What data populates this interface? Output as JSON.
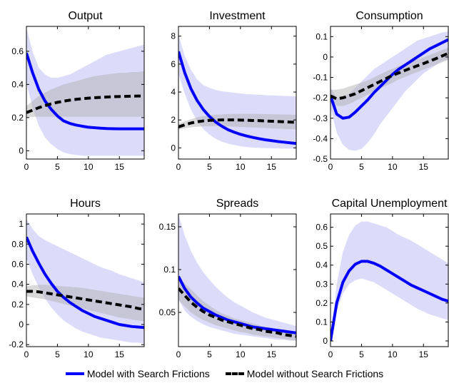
{
  "chart_data": [
    {
      "type": "line",
      "title": "Output",
      "xlim": [
        0,
        19
      ],
      "ylim": [
        -0.05,
        0.75
      ],
      "xticks": [
        0,
        5,
        10,
        15
      ],
      "yticks": [
        0,
        0.2,
        0.4,
        0.6
      ],
      "xticklabels": [
        "0",
        "5",
        "10",
        "15"
      ],
      "yticklabels": [
        "0",
        "0.2",
        "0.4",
        "0.6"
      ],
      "x": [
        0,
        1,
        2,
        3,
        4,
        5,
        6,
        7,
        8,
        9,
        10,
        11,
        12,
        13,
        14,
        15,
        16,
        17,
        18,
        19
      ],
      "series": [
        {
          "name": "Model with Search Frictions",
          "values": [
            0.59,
            0.47,
            0.37,
            0.3,
            0.25,
            0.21,
            0.18,
            0.165,
            0.155,
            0.148,
            0.142,
            0.139,
            0.136,
            0.134,
            0.133,
            0.132,
            0.132,
            0.132,
            0.132,
            0.132
          ],
          "band_lower": [
            0.41,
            0.26,
            0.15,
            0.08,
            0.04,
            0.01,
            -0.01,
            -0.02,
            -0.025,
            -0.03,
            -0.03,
            -0.03,
            -0.03,
            -0.03,
            -0.03,
            -0.03,
            -0.03,
            -0.03,
            -0.03,
            -0.03
          ],
          "band_upper": [
            0.74,
            0.6,
            0.5,
            0.46,
            0.44,
            0.44,
            0.45,
            0.46,
            0.48,
            0.5,
            0.52,
            0.54,
            0.56,
            0.58,
            0.59,
            0.6,
            0.61,
            0.62,
            0.63,
            0.64
          ]
        },
        {
          "name": "Model without Search Frictions",
          "values": [
            0.23,
            0.245,
            0.26,
            0.272,
            0.283,
            0.292,
            0.299,
            0.305,
            0.31,
            0.314,
            0.317,
            0.32,
            0.322,
            0.324,
            0.326,
            0.327,
            0.328,
            0.329,
            0.33,
            0.33
          ],
          "band_lower": [
            0.2,
            0.205,
            0.205,
            0.205,
            0.205,
            0.205,
            0.205,
            0.205,
            0.205,
            0.205,
            0.205,
            0.205,
            0.205,
            0.205,
            0.205,
            0.205,
            0.205,
            0.205,
            0.205,
            0.205
          ],
          "band_upper": [
            0.27,
            0.3,
            0.33,
            0.35,
            0.37,
            0.385,
            0.4,
            0.41,
            0.42,
            0.43,
            0.44,
            0.45,
            0.455,
            0.46,
            0.465,
            0.47,
            0.47,
            0.475,
            0.475,
            0.48
          ]
        }
      ]
    },
    {
      "type": "line",
      "title": "Investment",
      "xlim": [
        0,
        19
      ],
      "ylim": [
        -0.8,
        8.7
      ],
      "xticks": [
        0,
        5,
        10,
        15
      ],
      "yticks": [
        0,
        2,
        4,
        6,
        8
      ],
      "xticklabels": [
        "0",
        "5",
        "10",
        "15"
      ],
      "yticklabels": [
        "0",
        "2",
        "4",
        "6",
        "8"
      ],
      "x": [
        0,
        1,
        2,
        3,
        4,
        5,
        6,
        7,
        8,
        9,
        10,
        11,
        12,
        13,
        14,
        15,
        16,
        17,
        18,
        19
      ],
      "series": [
        {
          "name": "Model with Search Frictions",
          "values": [
            6.9,
            5.4,
            4.25,
            3.4,
            2.75,
            2.25,
            1.85,
            1.55,
            1.3,
            1.12,
            0.97,
            0.85,
            0.75,
            0.66,
            0.58,
            0.52,
            0.46,
            0.41,
            0.36,
            0.32
          ],
          "band_lower": [
            5.3,
            3.9,
            2.75,
            1.95,
            1.35,
            0.95,
            0.65,
            0.45,
            0.3,
            0.2,
            0.12,
            0.06,
            0.02,
            0.0,
            -0.02,
            -0.03,
            -0.04,
            -0.05,
            -0.05,
            -0.05
          ],
          "band_upper": [
            8.1,
            6.6,
            5.6,
            4.9,
            4.5,
            4.3,
            4.15,
            4.05,
            4.0,
            3.95,
            3.9,
            3.85,
            3.82,
            3.8,
            3.78,
            3.76,
            3.74,
            3.72,
            3.7,
            3.7
          ]
        },
        {
          "name": "Model without Search Frictions",
          "values": [
            1.5,
            1.65,
            1.78,
            1.87,
            1.93,
            1.97,
            1.99,
            2.0,
            2.0,
            2.0,
            1.99,
            1.98,
            1.96,
            1.95,
            1.93,
            1.91,
            1.89,
            1.87,
            1.85,
            1.83
          ],
          "band_lower": [
            1.3,
            1.4,
            1.47,
            1.52,
            1.55,
            1.56,
            1.56,
            1.55,
            1.54,
            1.52,
            1.5,
            1.48,
            1.46,
            1.44,
            1.42,
            1.4,
            1.38,
            1.36,
            1.34,
            1.32
          ],
          "band_upper": [
            1.7,
            1.9,
            2.05,
            2.18,
            2.27,
            2.33,
            2.37,
            2.4,
            2.42,
            2.43,
            2.44,
            2.44,
            2.44,
            2.43,
            2.42,
            2.41,
            2.4,
            2.39,
            2.38,
            2.37
          ]
        }
      ]
    },
    {
      "type": "line",
      "title": "Consumption",
      "xlim": [
        0,
        19
      ],
      "ylim": [
        -0.5,
        0.15
      ],
      "xticks": [
        0,
        5,
        10,
        15
      ],
      "yticks": [
        -0.5,
        -0.4,
        -0.3,
        -0.2,
        -0.1,
        0,
        0.1
      ],
      "xticklabels": [
        "0",
        "5",
        "10",
        "15"
      ],
      "yticklabels": [
        "-0.5",
        "-0.4",
        "-0.3",
        "-0.2",
        "-0.1",
        "0",
        "0.1"
      ],
      "x": [
        0,
        1,
        2,
        3,
        4,
        5,
        6,
        7,
        8,
        9,
        10,
        11,
        12,
        13,
        14,
        15,
        16,
        17,
        18,
        19
      ],
      "series": [
        {
          "name": "Model with Search Frictions",
          "values": [
            -0.19,
            -0.28,
            -0.3,
            -0.295,
            -0.27,
            -0.24,
            -0.21,
            -0.175,
            -0.145,
            -0.115,
            -0.085,
            -0.06,
            -0.04,
            -0.02,
            0.0,
            0.02,
            0.04,
            0.055,
            0.07,
            0.085
          ],
          "band_lower": [
            -0.25,
            -0.37,
            -0.43,
            -0.455,
            -0.46,
            -0.45,
            -0.42,
            -0.38,
            -0.33,
            -0.29,
            -0.25,
            -0.21,
            -0.17,
            -0.14,
            -0.11,
            -0.08,
            -0.06,
            -0.04,
            -0.02,
            -0.01
          ],
          "band_upper": [
            -0.15,
            -0.2,
            -0.2,
            -0.18,
            -0.15,
            -0.12,
            -0.09,
            -0.06,
            -0.04,
            -0.02,
            0.0,
            0.02,
            0.04,
            0.06,
            0.08,
            0.09,
            0.1,
            0.11,
            0.12,
            0.125
          ]
        },
        {
          "name": "Model without Search Frictions",
          "values": [
            -0.19,
            -0.205,
            -0.2,
            -0.19,
            -0.18,
            -0.165,
            -0.15,
            -0.135,
            -0.12,
            -0.105,
            -0.09,
            -0.078,
            -0.066,
            -0.054,
            -0.043,
            -0.032,
            -0.02,
            -0.008,
            0.005,
            0.018
          ],
          "band_lower": [
            -0.21,
            -0.24,
            -0.24,
            -0.23,
            -0.215,
            -0.2,
            -0.185,
            -0.17,
            -0.155,
            -0.14,
            -0.125,
            -0.11,
            -0.098,
            -0.086,
            -0.074,
            -0.062,
            -0.05,
            -0.038,
            -0.026,
            -0.015
          ],
          "band_upper": [
            -0.16,
            -0.16,
            -0.155,
            -0.145,
            -0.135,
            -0.125,
            -0.115,
            -0.1,
            -0.085,
            -0.07,
            -0.058,
            -0.045,
            -0.034,
            -0.023,
            -0.012,
            -0.002,
            0.01,
            0.022,
            0.034,
            0.046
          ]
        }
      ]
    },
    {
      "type": "line",
      "title": "Hours",
      "xlim": [
        0,
        19
      ],
      "ylim": [
        -0.22,
        1.1
      ],
      "xticks": [
        0,
        5,
        10,
        15
      ],
      "yticks": [
        -0.2,
        0,
        0.2,
        0.4,
        0.6,
        0.8,
        1
      ],
      "xticklabels": [
        "0",
        "5",
        "10",
        "15"
      ],
      "yticklabels": [
        "-0.2",
        "0",
        "0.2",
        "0.4",
        "0.6",
        "0.8",
        "1"
      ],
      "x": [
        0,
        1,
        2,
        3,
        4,
        5,
        6,
        7,
        8,
        9,
        10,
        11,
        12,
        13,
        14,
        15,
        16,
        17,
        18,
        19
      ],
      "series": [
        {
          "name": "Model with Search Frictions",
          "values": [
            0.87,
            0.73,
            0.61,
            0.5,
            0.41,
            0.33,
            0.27,
            0.22,
            0.18,
            0.14,
            0.11,
            0.08,
            0.06,
            0.04,
            0.02,
            0.0,
            -0.01,
            -0.02,
            -0.025,
            -0.03
          ],
          "band_lower": [
            0.66,
            0.5,
            0.37,
            0.26,
            0.17,
            0.1,
            0.04,
            0.0,
            -0.04,
            -0.07,
            -0.09,
            -0.11,
            -0.13,
            -0.14,
            -0.15,
            -0.16,
            -0.17,
            -0.18,
            -0.18,
            -0.19
          ],
          "band_upper": [
            1.05,
            0.95,
            0.88,
            0.84,
            0.81,
            0.78,
            0.75,
            0.72,
            0.69,
            0.66,
            0.63,
            0.6,
            0.57,
            0.55,
            0.53,
            0.5,
            0.48,
            0.46,
            0.44,
            0.42
          ]
        },
        {
          "name": "Model without Search Frictions",
          "values": [
            0.33,
            0.33,
            0.325,
            0.315,
            0.305,
            0.295,
            0.285,
            0.275,
            0.265,
            0.255,
            0.245,
            0.235,
            0.225,
            0.215,
            0.205,
            0.195,
            0.185,
            0.175,
            0.16,
            0.15
          ],
          "band_lower": [
            0.28,
            0.27,
            0.26,
            0.25,
            0.235,
            0.22,
            0.205,
            0.19,
            0.175,
            0.16,
            0.145,
            0.13,
            0.115,
            0.1,
            0.085,
            0.07,
            0.06,
            0.05,
            0.04,
            0.03
          ],
          "band_upper": [
            0.38,
            0.39,
            0.395,
            0.395,
            0.39,
            0.385,
            0.38,
            0.375,
            0.37,
            0.365,
            0.355,
            0.345,
            0.335,
            0.325,
            0.315,
            0.305,
            0.295,
            0.285,
            0.275,
            0.265
          ]
        }
      ]
    },
    {
      "type": "line",
      "title": "Spreads",
      "xlim": [
        0,
        19
      ],
      "ylim": [
        0.01,
        0.165
      ],
      "xticks": [
        0,
        5,
        10,
        15
      ],
      "yticks": [
        0.05,
        0.1,
        0.15
      ],
      "xticklabels": [
        "0",
        "5",
        "10",
        "15"
      ],
      "yticklabels": [
        "0.05",
        "0.1",
        "0.15"
      ],
      "x": [
        0,
        1,
        2,
        3,
        4,
        5,
        6,
        7,
        8,
        9,
        10,
        11,
        12,
        13,
        14,
        15,
        16,
        17,
        18,
        19
      ],
      "series": [
        {
          "name": "Model with Search Frictions",
          "values": [
            0.092,
            0.078,
            0.068,
            0.061,
            0.055,
            0.051,
            0.047,
            0.044,
            0.041,
            0.039,
            0.037,
            0.035,
            0.033,
            0.032,
            0.031,
            0.03,
            0.029,
            0.028,
            0.027,
            0.026
          ],
          "band_lower": [
            0.065,
            0.052,
            0.045,
            0.04,
            0.036,
            0.033,
            0.031,
            0.029,
            0.027,
            0.025,
            0.024,
            0.023,
            0.022,
            0.021,
            0.02,
            0.019,
            0.018,
            0.018,
            0.017,
            0.017
          ],
          "band_upper": [
            0.165,
            0.14,
            0.122,
            0.108,
            0.097,
            0.088,
            0.08,
            0.073,
            0.067,
            0.062,
            0.058,
            0.054,
            0.05,
            0.047,
            0.044,
            0.042,
            0.04,
            0.038,
            0.036,
            0.034
          ]
        },
        {
          "name": "Model without Search Frictions",
          "values": [
            0.078,
            0.07,
            0.062,
            0.056,
            0.051,
            0.047,
            0.044,
            0.041,
            0.039,
            0.037,
            0.035,
            0.033,
            0.031,
            0.03,
            0.028,
            0.027,
            0.026,
            0.024,
            0.023,
            0.022
          ],
          "band_lower": [
            0.065,
            0.057,
            0.05,
            0.045,
            0.041,
            0.038,
            0.035,
            0.033,
            0.031,
            0.029,
            0.027,
            0.026,
            0.024,
            0.023,
            0.022,
            0.021,
            0.02,
            0.019,
            0.018,
            0.017
          ],
          "band_upper": [
            0.09,
            0.084,
            0.077,
            0.07,
            0.063,
            0.058,
            0.053,
            0.049,
            0.046,
            0.043,
            0.041,
            0.039,
            0.037,
            0.035,
            0.033,
            0.032,
            0.03,
            0.029,
            0.028,
            0.027
          ]
        }
      ]
    },
    {
      "type": "line",
      "title": "Capital Unemployment",
      "xlim": [
        0,
        19
      ],
      "ylim": [
        -0.03,
        0.67
      ],
      "xticks": [
        0,
        5,
        10,
        15
      ],
      "yticks": [
        0,
        0.1,
        0.2,
        0.3,
        0.4,
        0.5,
        0.6
      ],
      "xticklabels": [
        "0",
        "5",
        "10",
        "15"
      ],
      "yticklabels": [
        "0",
        "0.1",
        "0.2",
        "0.3",
        "0.4",
        "0.5",
        "0.6"
      ],
      "x": [
        0,
        1,
        2,
        3,
        4,
        5,
        6,
        7,
        8,
        9,
        10,
        11,
        12,
        13,
        14,
        15,
        16,
        17,
        18,
        19
      ],
      "series": [
        {
          "name": "Model with Search Frictions",
          "values": [
            0.0,
            0.2,
            0.31,
            0.37,
            0.405,
            0.42,
            0.42,
            0.41,
            0.395,
            0.375,
            0.355,
            0.335,
            0.315,
            0.295,
            0.28,
            0.265,
            0.25,
            0.235,
            0.22,
            0.21
          ],
          "band_lower": [
            0.0,
            0.16,
            0.25,
            0.3,
            0.32,
            0.33,
            0.32,
            0.31,
            0.29,
            0.27,
            0.25,
            0.23,
            0.21,
            0.19,
            0.17,
            0.155,
            0.14,
            0.13,
            0.12,
            0.11
          ],
          "band_upper": [
            0.0,
            0.3,
            0.47,
            0.56,
            0.61,
            0.63,
            0.63,
            0.62,
            0.61,
            0.6,
            0.58,
            0.56,
            0.545,
            0.53,
            0.51,
            0.49,
            0.47,
            0.45,
            0.43,
            0.41
          ]
        }
      ]
    }
  ],
  "legend": {
    "items": [
      {
        "label": "Model with Search Frictions",
        "color": "#0000ff",
        "style": "solid"
      },
      {
        "label": "Model without Search Frictions",
        "color": "#000000",
        "style": "dashed"
      }
    ]
  },
  "colors": {
    "with_line": "#0000ff",
    "with_band": "#dcdcfa",
    "without_line": "#000000",
    "without_band": "#aaaaaa",
    "without_band_opacity": 0.45
  }
}
